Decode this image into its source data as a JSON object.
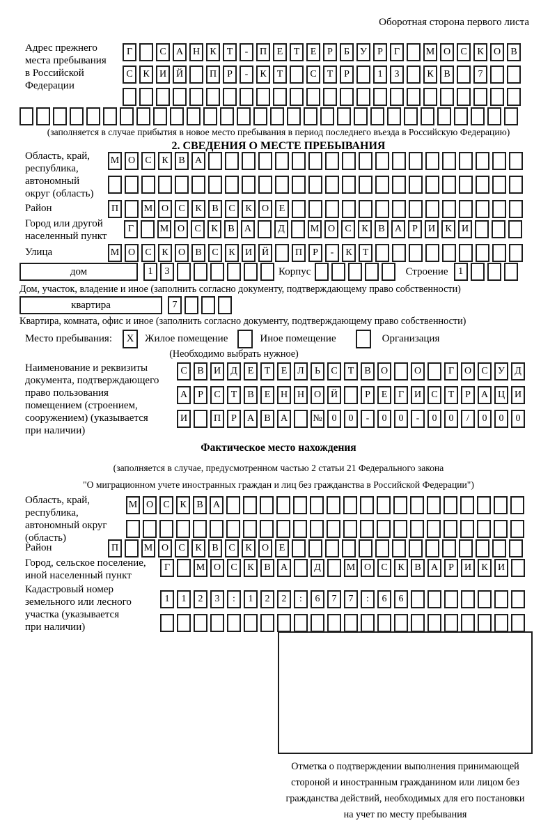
{
  "header": {
    "note": "Оборотная сторона первого листа"
  },
  "prev_address": {
    "label": "Адрес прежнего\nместа пребывания\nв Российской\nФедерации",
    "rows": [
      {
        "text": "Г САНКТ-ПЕТЕРБУРГ МОСКОВ",
        "len": 24
      },
      {
        "text": "СКИЙ ПР-КТ СТР 13 КВ 7",
        "len": 24
      },
      {
        "text": "",
        "len": 24
      },
      {
        "text": "",
        "len": 30
      }
    ],
    "note": "(заполняется в случае прибытия в новое место пребывания в период последнего въезда в Российскую Федерацию)"
  },
  "section2": {
    "title": "2. СВЕДЕНИЯ О МЕСТЕ ПРЕБЫВАНИЯ",
    "region": {
      "label": "Область, край,\nреспублика,\nавтономный\nокруг (область)",
      "rows": [
        {
          "text": "МОСКВА",
          "len": 25
        },
        {
          "text": "",
          "len": 25
        }
      ]
    },
    "district": {
      "label": "Район",
      "row": {
        "text": "П МОСКВСКОЕ",
        "len": 25
      }
    },
    "city": {
      "label": "Город или другой\nнаселенный пункт",
      "row": {
        "text": "Г МОСКВА Д МОСКВАРИКИ",
        "len": 24
      }
    },
    "street": {
      "label": "Улица",
      "row": {
        "text": "МОСКОВСКИЙ ПР-КТ",
        "len": 25
      }
    },
    "house": {
      "dom_label": "дом",
      "dom_cells": {
        "text": "13",
        "len": 8
      },
      "korpus_label": "Корпус",
      "korpus_cells": {
        "text": "",
        "len": 5
      },
      "stroenie_label": "Строение",
      "stroenie_cells": {
        "text": "1",
        "len": 4
      },
      "caption": "Дом, участок, владение и иное (заполнить согласно документу, подтверждающему право собственности)"
    },
    "apartment": {
      "label": "квартира",
      "cells": {
        "text": "7",
        "len": 4
      },
      "caption": "Квартира, комната, офис и иное (заполнить согласно документу, подтверждающему право собственности)"
    },
    "stay_type": {
      "label": "Место пребывания:",
      "options": [
        {
          "label": "Жилое помещение",
          "mark": "X"
        },
        {
          "label": "Иное помещение",
          "mark": ""
        },
        {
          "label": "Организация",
          "mark": ""
        }
      ],
      "note": "(Необходимо выбрать нужное)"
    },
    "document": {
      "label": "Наименование и реквизиты\nдокумента, подтверждающего\nправо пользования\nпомещением (строением,\nсооружением) (указывается\nпри наличии)",
      "rows": [
        {
          "text": "СВИДЕТЕЛЬСТВО О ГОСУД",
          "len": 21
        },
        {
          "text": "АРСТВЕННОЙ РЕГИСТРАЦИ",
          "len": 21
        },
        {
          "text": "И ПРАВА №00-00-00/000",
          "len": 21
        }
      ]
    }
  },
  "actual_location": {
    "title": "Фактическое место нахождения",
    "note": "(заполняется в случае, предусмотренном частью 2 статьи 21 Федерального закона\n\"О миграционном учете иностранных граждан и лиц без гражданства в Российской Федерации\")",
    "region": {
      "label": "Область, край,\nреспублика,\nавтономный округ\n(область)",
      "rows": [
        {
          "text": "МОСКВА",
          "len": 24
        },
        {
          "text": "",
          "len": 24
        }
      ]
    },
    "district": {
      "label": "Район",
      "row": {
        "text": "П МОСКВСКОЕ",
        "len": 25
      }
    },
    "city": {
      "label": "Город, сельское поселение,\nиной населенный пункт",
      "row": {
        "text": "Г МОСКВА Д МОСКВАРИКИ",
        "len": 22
      }
    },
    "cadastre": {
      "label": "Кадастровый номер\nземельного или лесного\nучастка (указывается\nпри наличии)",
      "rows": [
        {
          "text": "1123:122:677:66",
          "len": 22
        },
        {
          "text": "",
          "len": 22
        }
      ]
    },
    "stamp_caption": "Отметка о подтверждении выполнения принимающей\nстороной и иностранным гражданином или лицом без\nгражданства действий, необходимых для его постановки\nна учет по месту пребывания"
  }
}
